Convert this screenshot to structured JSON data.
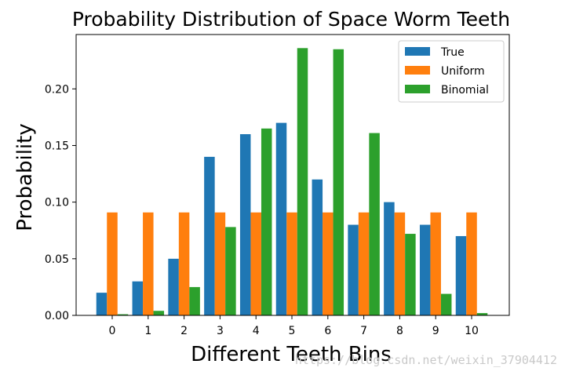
{
  "chart_data": {
    "type": "bar",
    "title": "Probability Distribution of Space Worm Teeth",
    "xlabel": "Different Teeth Bins",
    "ylabel": "Probability",
    "categories": [
      "0",
      "1",
      "2",
      "3",
      "4",
      "5",
      "6",
      "7",
      "8",
      "9",
      "10"
    ],
    "series": [
      {
        "name": "True",
        "color": "#1f77b4",
        "values": [
          0.02,
          0.03,
          0.05,
          0.14,
          0.16,
          0.17,
          0.12,
          0.08,
          0.1,
          0.08,
          0.07
        ]
      },
      {
        "name": "Uniform",
        "color": "#ff7f0e",
        "values": [
          0.0909,
          0.0909,
          0.0909,
          0.0909,
          0.0909,
          0.0909,
          0.0909,
          0.0909,
          0.0909,
          0.0909,
          0.0909
        ]
      },
      {
        "name": "Binomial",
        "color": "#2ca02c",
        "values": [
          0.001,
          0.004,
          0.025,
          0.078,
          0.165,
          0.236,
          0.235,
          0.161,
          0.072,
          0.019,
          0.002
        ]
      }
    ],
    "yticks": [
      "0.00",
      "0.05",
      "0.10",
      "0.15",
      "0.20"
    ],
    "ylim": [
      0,
      0.248
    ],
    "grid": false,
    "legend_position": "top-right"
  },
  "watermark": "https://blog.csdn.net/weixin_37904412"
}
